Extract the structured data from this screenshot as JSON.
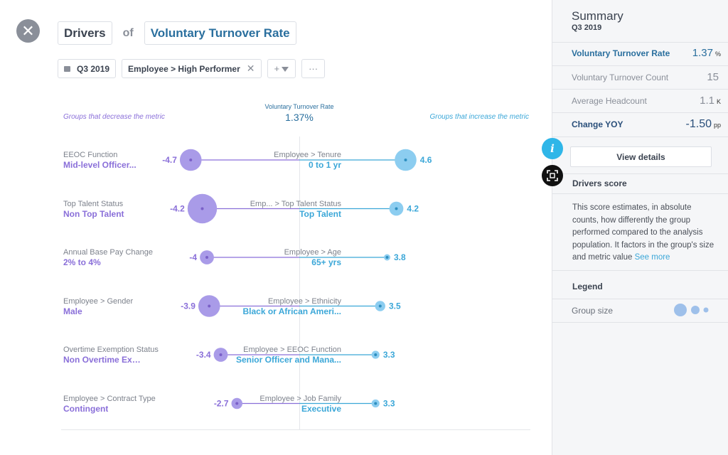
{
  "header": {
    "drivers_label": "Drivers",
    "of_label": "of",
    "metric_label": "Voluntary Turnover Rate"
  },
  "filters": {
    "period": "Q3 2019",
    "segment": "Employee > High Performer",
    "add_filter_label": "+",
    "more_label": "···"
  },
  "chart_data": {
    "type": "scatter",
    "title": "Voluntary Turnover Rate",
    "center_value": "1.37%",
    "left_header": "Groups that decrease the metric",
    "right_header": "Groups that increase the metric",
    "colors": {
      "decrease": "#a99be8",
      "increase": "#8ccdf0",
      "decrease_text": "#8a6fd9",
      "increase_text": "#3ba7d8"
    },
    "rows": [
      {
        "left_name": "EEOC Function",
        "left_value": "Mid-level Officer...",
        "left_score": -4.7,
        "left_size": 2,
        "right_name": "Employee > Tenure",
        "right_value": "0 to 1 yr",
        "right_score": 4.6,
        "right_size": 2
      },
      {
        "left_name": "Top Talent Status",
        "left_value": "Non Top Talent",
        "left_score": -4.2,
        "left_size": 3,
        "right_name": "Emp... > Top Talent Status",
        "right_value": "Top Talent",
        "right_score": 4.2,
        "right_size": 1
      },
      {
        "left_name": "Annual Base Pay Change",
        "left_value": "2% to 4%",
        "left_score": -4,
        "left_size": 1,
        "right_name": "Employee > Age",
        "right_value": "65+ yrs",
        "right_score": 3.8,
        "right_size": 0
      },
      {
        "left_name": "Employee > Gender",
        "left_value": "Male",
        "left_score": -3.9,
        "left_size": 2,
        "right_name": "Employee > Ethnicity",
        "right_value": "Black or African Ameri...",
        "right_score": 3.5,
        "right_size": 0.5
      },
      {
        "left_name": "Overtime Exemption Status",
        "left_value": "Non Overtime Exempted",
        "left_score": -3.4,
        "left_size": 1,
        "right_name": "Employee > EEOC Function",
        "right_value": "Senior Officer and Mana...",
        "right_score": 3.3,
        "right_size": 0.2
      },
      {
        "left_name": "Employee > Contract Type",
        "left_value": "Contingent",
        "left_score": -2.7,
        "left_size": 0.6,
        "right_name": "Employee > Job Family",
        "right_value": "Executive",
        "right_score": 3.3,
        "right_size": 0.2
      }
    ]
  },
  "summary": {
    "title": "Summary",
    "period": "Q3 2019",
    "metrics": [
      {
        "label": "Voluntary Turnover Rate",
        "value": "1.37",
        "unit": "%"
      },
      {
        "label": "Voluntary Turnover Count",
        "value": "15",
        "unit": ""
      },
      {
        "label": "Average Headcount",
        "value": "1.1",
        "unit": "K"
      },
      {
        "label": "Change YOY",
        "value": "-1.50",
        "unit": "pp"
      }
    ],
    "view_details_label": "View details",
    "drivers_score_title": "Drivers score",
    "drivers_score_text": "This score estimates, in absolute counts, how differently the group performed compared to the analysis population. It factors in the group's size and metric value",
    "see_more_label": "See more",
    "legend_title": "Legend",
    "group_size_label": "Group size"
  },
  "info_icon_char": "i"
}
